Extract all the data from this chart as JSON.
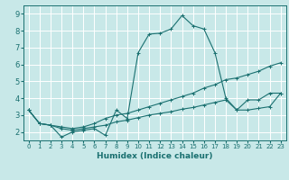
{
  "xlabel": "Humidex (Indice chaleur)",
  "bg_color": "#c8e8e8",
  "grid_color": "#ffffff",
  "line_color": "#1a7070",
  "xlim": [
    -0.5,
    23.5
  ],
  "ylim": [
    1.5,
    9.5
  ],
  "xticks": [
    0,
    1,
    2,
    3,
    4,
    5,
    6,
    7,
    8,
    9,
    10,
    11,
    12,
    13,
    14,
    15,
    16,
    17,
    18,
    19,
    20,
    21,
    22,
    23
  ],
  "yticks": [
    2,
    3,
    4,
    5,
    6,
    7,
    8,
    9
  ],
  "line1_x": [
    0,
    1,
    2,
    3,
    4,
    5,
    6,
    7,
    8,
    9,
    10,
    11,
    12,
    13,
    14,
    15,
    16,
    17,
    18,
    19,
    20,
    21,
    22,
    23
  ],
  "line1_y": [
    3.3,
    2.5,
    2.4,
    1.7,
    2.0,
    2.1,
    2.2,
    1.8,
    3.3,
    2.8,
    6.7,
    7.8,
    7.85,
    8.1,
    8.9,
    8.3,
    8.1,
    6.7,
    4.0,
    3.3,
    3.9,
    3.9,
    4.3,
    4.3
  ],
  "line2_x": [
    0,
    1,
    2,
    3,
    4,
    5,
    6,
    7,
    8,
    9,
    10,
    11,
    12,
    13,
    14,
    15,
    16,
    17,
    18,
    19,
    20,
    21,
    22,
    23
  ],
  "line2_y": [
    3.3,
    2.5,
    2.4,
    2.3,
    2.2,
    2.3,
    2.5,
    2.8,
    3.0,
    3.1,
    3.3,
    3.5,
    3.7,
    3.9,
    4.1,
    4.3,
    4.6,
    4.8,
    5.1,
    5.2,
    5.4,
    5.6,
    5.9,
    6.1
  ],
  "line3_x": [
    0,
    1,
    2,
    3,
    4,
    5,
    6,
    7,
    8,
    9,
    10,
    11,
    12,
    13,
    14,
    15,
    16,
    17,
    18,
    19,
    20,
    21,
    22,
    23
  ],
  "line3_y": [
    3.3,
    2.5,
    2.4,
    2.2,
    2.1,
    2.2,
    2.3,
    2.4,
    2.6,
    2.7,
    2.85,
    3.0,
    3.1,
    3.2,
    3.35,
    3.45,
    3.6,
    3.75,
    3.9,
    3.3,
    3.3,
    3.4,
    3.5,
    4.3
  ]
}
